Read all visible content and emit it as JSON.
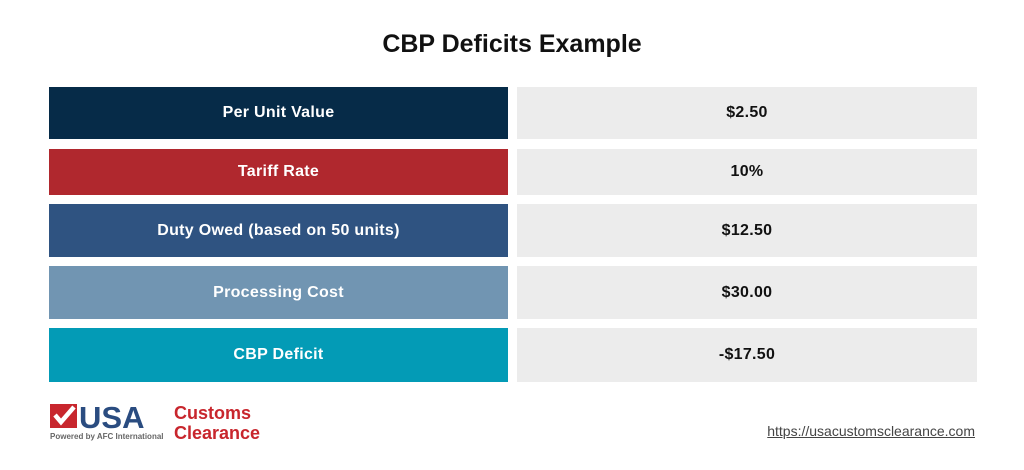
{
  "title": "CBP Deficits Example",
  "rows": [
    {
      "label": "Per Unit Value",
      "value": "$2.50",
      "color": "#062b48"
    },
    {
      "label": "Tariff Rate",
      "value": "10%",
      "color": "#b0282e"
    },
    {
      "label": "Duty Owed (based on 50 units)",
      "value": "$12.50",
      "color": "#2f5381"
    },
    {
      "label": "Processing Cost",
      "value": "$30.00",
      "color": "#7195b2"
    },
    {
      "label": "CBP Deficit",
      "value": "-$17.50",
      "color": "#039bb6"
    }
  ],
  "logo": {
    "usa": "USA",
    "customs": "Customs",
    "clearance": "Clearance",
    "tagline": "Powered by AFC International"
  },
  "url": "https://usacustomsclearance.com"
}
